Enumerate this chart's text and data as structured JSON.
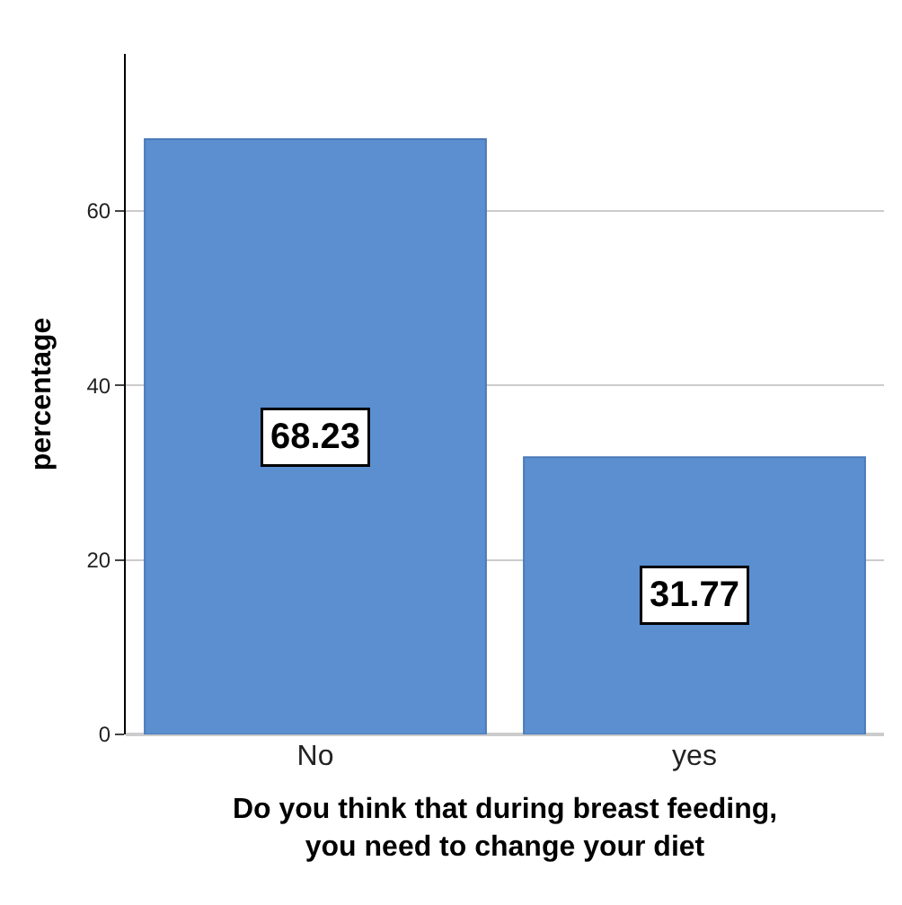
{
  "chart_data": {
    "type": "bar",
    "xlabel": "Do you think that during breast feeding, you need to change your diet",
    "ylabel": "percentage",
    "categories": [
      "No",
      "yes"
    ],
    "values": [
      68.23,
      31.77
    ],
    "color": "#5b8fd0",
    "ylim": [
      0,
      78
    ],
    "yticks": [
      0,
      20,
      40,
      60
    ],
    "grid": "y",
    "data_labels": true,
    "legend": false
  }
}
